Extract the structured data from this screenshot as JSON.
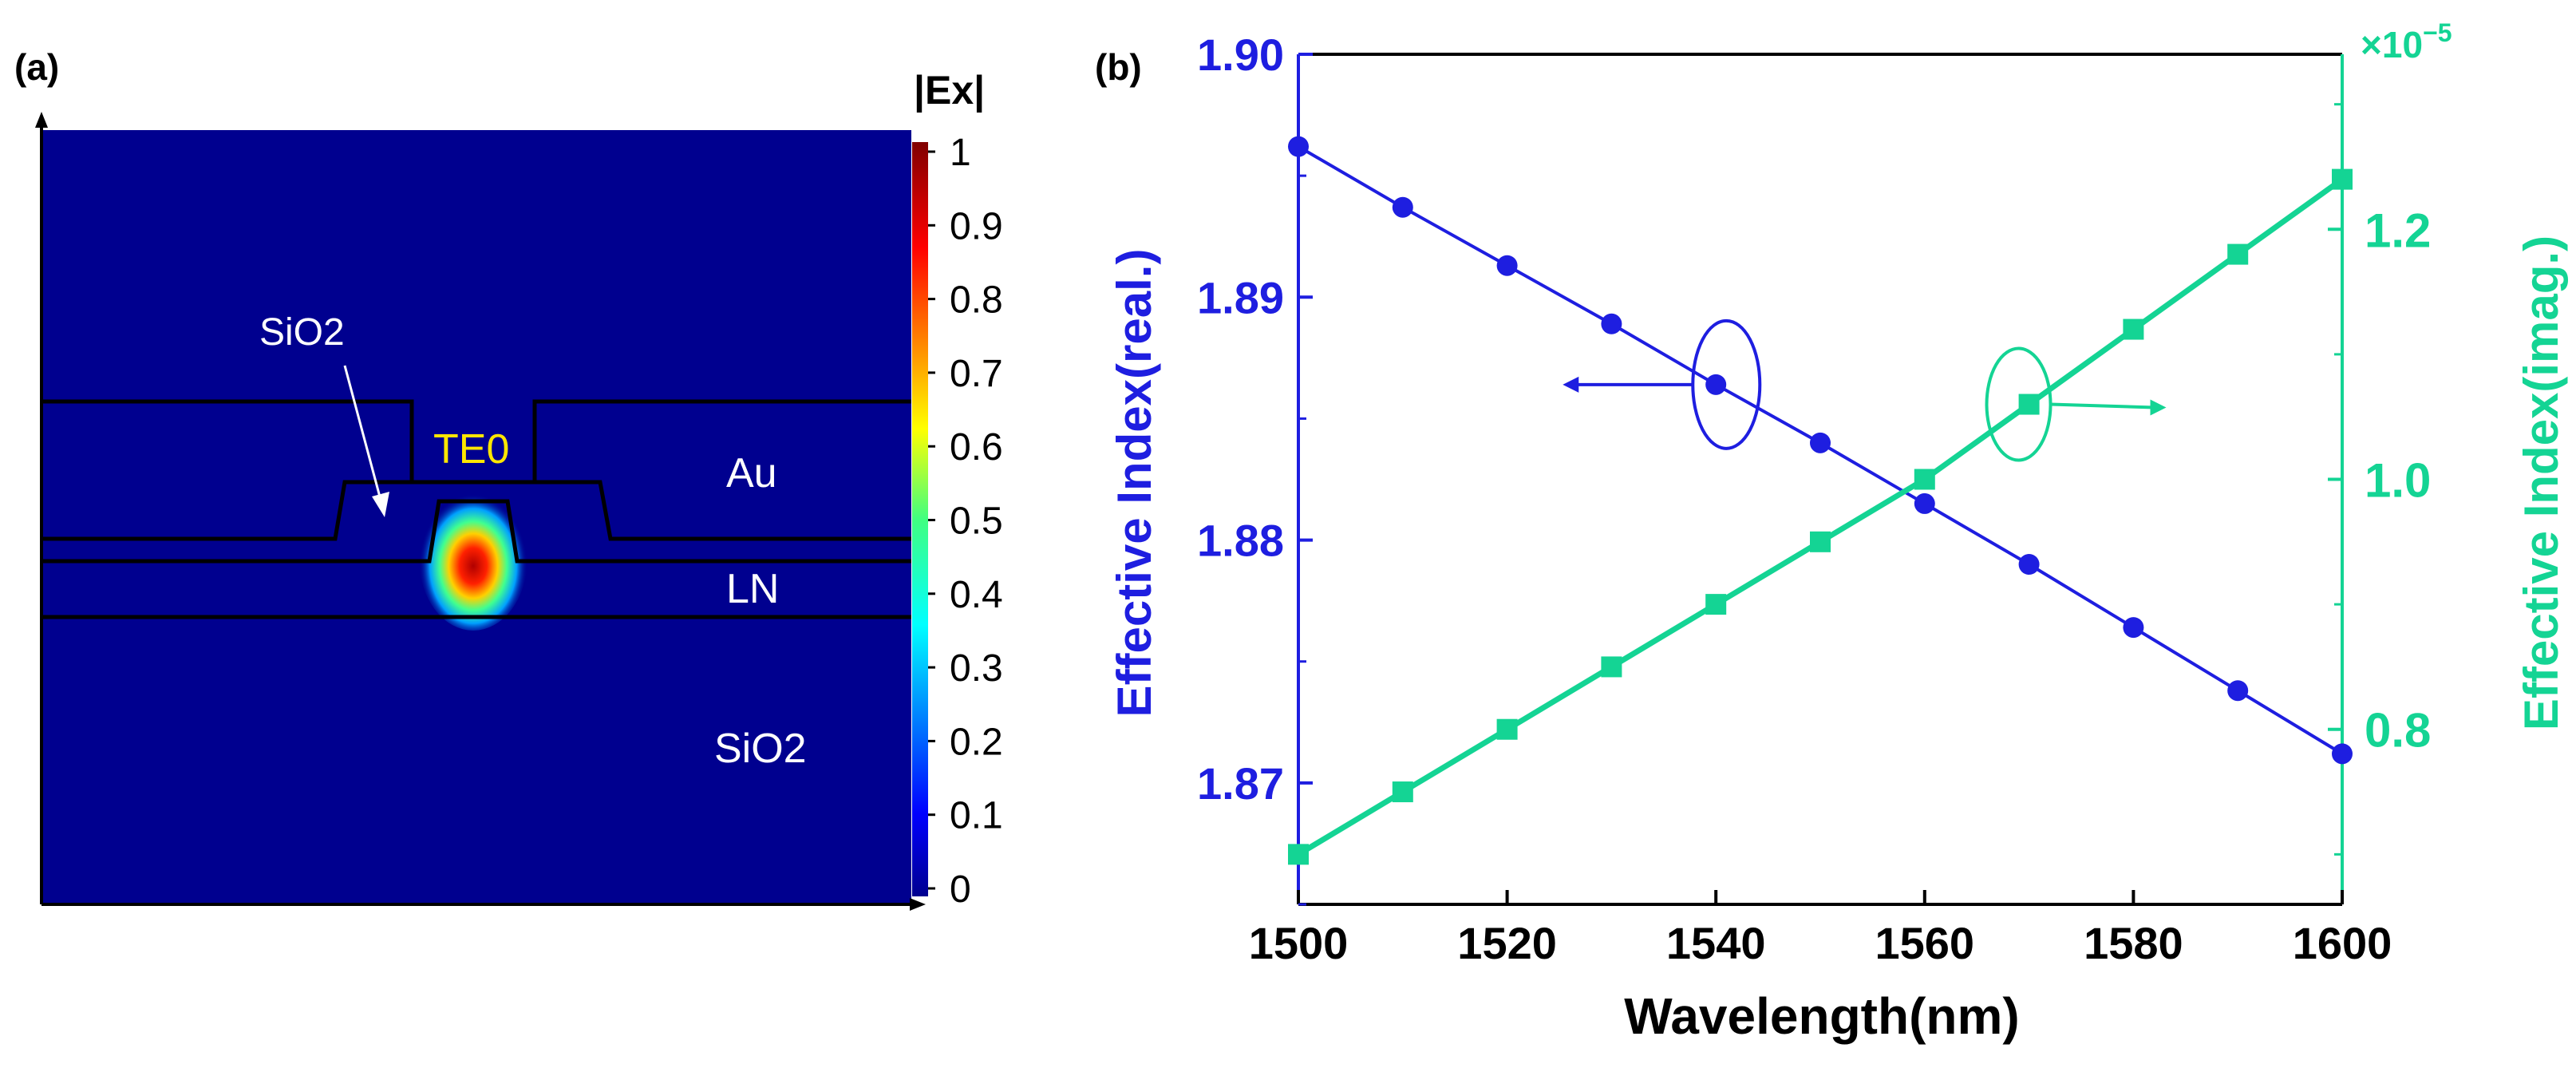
{
  "panel_a": {
    "label": "(a)",
    "colorbar_title": "|Ex|",
    "colorbar_ticks": [
      "0",
      "0.1",
      "0.2",
      "0.3",
      "0.4",
      "0.5",
      "0.6",
      "0.7",
      "0.8",
      "0.9",
      "1"
    ],
    "mode_label": "TE0",
    "region_labels": {
      "sio2_top": "SiO2",
      "au": "Au",
      "ln": "LN",
      "sio2_bottom": "SiO2"
    },
    "colors": {
      "background": "#00008F",
      "mode_peak": "#B00000",
      "label_white": "#FFFFFF",
      "mode_label": "#FFE600"
    }
  },
  "panel_b": {
    "label": "(b)",
    "x_multiplier_label": "×10",
    "x_multiplier_exp": "−5",
    "colors": {
      "real": "#1E1EE0",
      "imag": "#14D494"
    }
  },
  "chart_data": {
    "type": "line",
    "title": "",
    "xlabel": "Wavelength(nm)",
    "ylabel_left": "Effective Index(real.)",
    "ylabel_right": "Effective Index(imag.)",
    "xlim": [
      1500,
      1600
    ],
    "ylim_left": [
      1.865,
      1.9
    ],
    "ylim_right": [
      0.66,
      1.34
    ],
    "x_ticks": [
      "1500",
      "1520",
      "1540",
      "1560",
      "1580",
      "1600"
    ],
    "y_ticks_left": [
      "1.87",
      "1.88",
      "1.89",
      "1.90"
    ],
    "y_ticks_right": [
      "0.8",
      "1.0",
      "1.2"
    ],
    "x": [
      1500,
      1510,
      1520,
      1530,
      1540,
      1550,
      1560,
      1570,
      1580,
      1590,
      1600
    ],
    "series": [
      {
        "name": "Effective Index(real.)",
        "axis": "left",
        "marker": "circle",
        "values": [
          1.8962,
          1.8937,
          1.8913,
          1.8889,
          1.8864,
          1.884,
          1.8815,
          1.879,
          1.8764,
          1.8738,
          1.8712
        ]
      },
      {
        "name": "Effective Index(imag.)",
        "axis": "right",
        "marker": "square",
        "scale": "×10^-5",
        "values": [
          0.7,
          0.75,
          0.8,
          0.85,
          0.9,
          0.95,
          1.0,
          1.06,
          1.12,
          1.18,
          1.24
        ]
      }
    ]
  }
}
